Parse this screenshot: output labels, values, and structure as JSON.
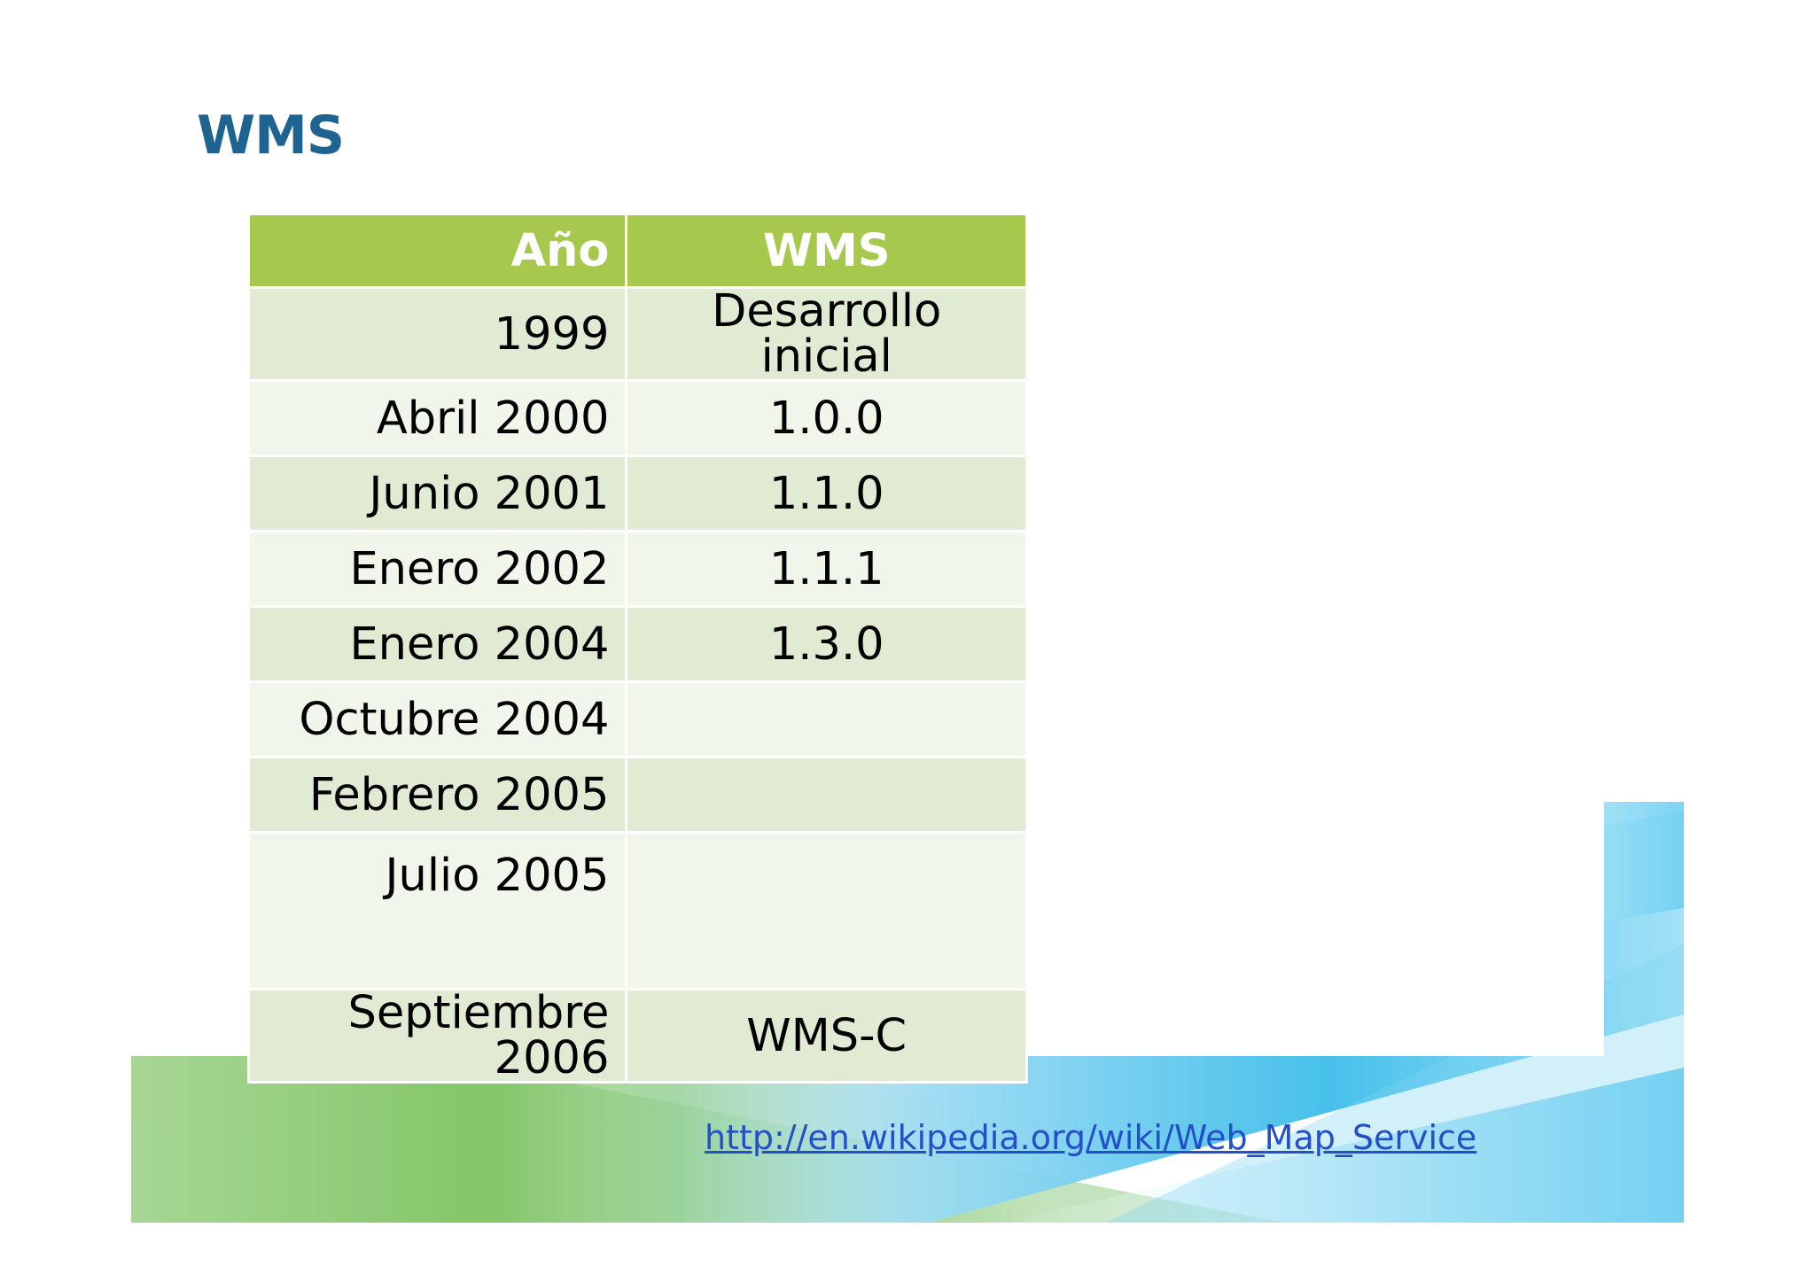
{
  "slide": {
    "title": "WMS"
  },
  "table": {
    "headers": {
      "year": "Año",
      "wms": "WMS"
    },
    "rows": [
      {
        "year": "1999",
        "wms": "Desarrollo inicial"
      },
      {
        "year": "Abril 2000",
        "wms": "1.0.0"
      },
      {
        "year": "Junio 2001",
        "wms": "1.1.0"
      },
      {
        "year": "Enero 2002",
        "wms": "1.1.1"
      },
      {
        "year": "Enero 2004",
        "wms": "1.3.0"
      },
      {
        "year": "Octubre 2004",
        "wms": ""
      },
      {
        "year": "Febrero 2005",
        "wms": ""
      },
      {
        "year": "Julio 2005",
        "wms": ""
      },
      {
        "year": "Septiembre 2006",
        "wms": "WMS-C"
      }
    ]
  },
  "source": {
    "link_text": "http://en.wikipedia.org/wiki/Web_Map_Service"
  },
  "colors": {
    "title": "#1f6391",
    "header_bg": "#a6c94d",
    "row_dark": "#e1ead2",
    "row_light": "#f1f6ea",
    "link": "#2350c8",
    "accent_green": "#6dbb45",
    "accent_blue": "#29b6e8"
  }
}
